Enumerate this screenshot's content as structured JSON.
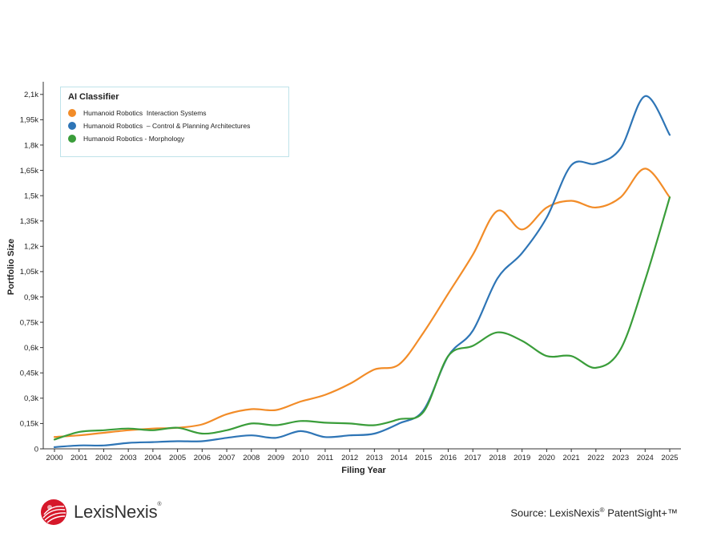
{
  "chart_data": {
    "type": "line",
    "title": "",
    "xlabel": "Filing Year",
    "ylabel": "Portfolio Size",
    "x": [
      2000,
      2001,
      2002,
      2003,
      2004,
      2005,
      2006,
      2007,
      2008,
      2009,
      2010,
      2011,
      2012,
      2013,
      2014,
      2015,
      2016,
      2017,
      2018,
      2019,
      2020,
      2021,
      2022,
      2023,
      2024,
      2025
    ],
    "x_tick_labels": [
      "2000",
      "2001",
      "2002",
      "2003",
      "2004",
      "2005",
      "2006",
      "2007",
      "2008",
      "2009",
      "2010",
      "2011",
      "2012",
      "2013",
      "2014",
      "2015",
      "2016",
      "2017",
      "2018",
      "2019",
      "2020",
      "2021",
      "2022",
      "2023",
      "2024",
      "2025"
    ],
    "ylim": [
      0,
      2175
    ],
    "y_ticks": [
      0,
      150,
      300,
      450,
      600,
      750,
      900,
      1050,
      1200,
      1350,
      1500,
      1650,
      1800,
      1950,
      2100
    ],
    "y_tick_labels": [
      "0",
      "0,15k",
      "0,3k",
      "0,45k",
      "0,6k",
      "0,75k",
      "0,9k",
      "1,05k",
      "1,2k",
      "1,35k",
      "1,5k",
      "1,65k",
      "1,8k",
      "1,95k",
      "2,1k"
    ],
    "legend": {
      "title": "AI Classifier",
      "position": "top-left"
    },
    "series": [
      {
        "name": "Humanoid Robotics  Interaction Systems",
        "color": "#f28c28",
        "values": [
          70,
          80,
          95,
          110,
          120,
          125,
          145,
          205,
          235,
          230,
          280,
          320,
          385,
          470,
          500,
          690,
          920,
          1150,
          1410,
          1300,
          1430,
          1470,
          1430,
          1490,
          1660,
          1490
        ]
      },
      {
        "name": "Humanoid Robotics  – Control & Planning Architectures",
        "color": "#2e75b6",
        "values": [
          10,
          20,
          20,
          35,
          40,
          45,
          45,
          65,
          80,
          65,
          105,
          70,
          80,
          90,
          150,
          230,
          550,
          700,
          1010,
          1160,
          1370,
          1680,
          1690,
          1780,
          2090,
          1860
        ]
      },
      {
        "name": "Humanoid Robotics - Morphology",
        "color": "#3a9d3a",
        "values": [
          55,
          100,
          110,
          120,
          110,
          125,
          90,
          110,
          150,
          140,
          165,
          155,
          150,
          140,
          175,
          220,
          550,
          610,
          690,
          640,
          550,
          550,
          480,
          590,
          1000,
          1490
        ]
      }
    ]
  },
  "branding": {
    "logo_text": "LexisNexis",
    "logo_reg": "®"
  },
  "source": {
    "prefix": "Source: LexisNexis",
    "reg": "®",
    "suffix": " PatentSight+™"
  }
}
